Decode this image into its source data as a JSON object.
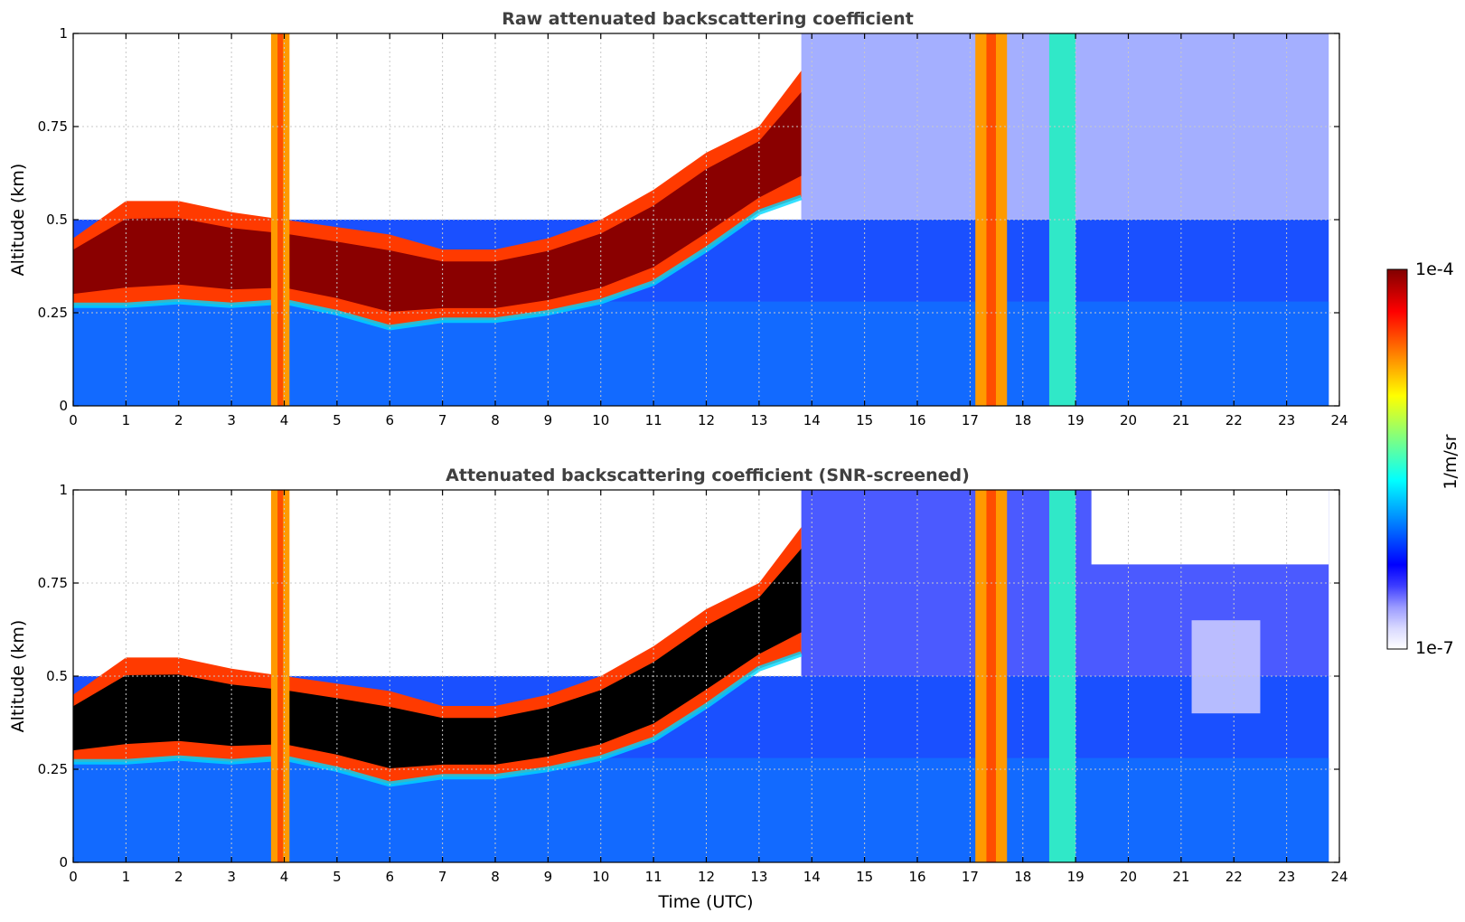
{
  "colorbar": {
    "max_label": "1e-4",
    "min_label": "1e-7",
    "unit_label": "1/m/sr",
    "colors": [
      "#ffffff",
      "#d8d8ff",
      "#9a9aff",
      "#3c3cff",
      "#0000ff",
      "#0040ff",
      "#0080ff",
      "#00c0ff",
      "#00ffff",
      "#40ffc0",
      "#80ff80",
      "#c0ff40",
      "#ffff00",
      "#ffc000",
      "#ff8000",
      "#ff4000",
      "#ff0000",
      "#c00000",
      "#800000"
    ]
  },
  "chart_data": [
    {
      "type": "heatmap",
      "title": "Raw attenuated backscattering coefficient",
      "xlabel": "",
      "ylabel": "Altitude (km)",
      "xlim": [
        0,
        24
      ],
      "ylim": [
        0,
        1
      ],
      "x_ticks": [
        "0",
        "1",
        "2",
        "3",
        "4",
        "5",
        "6",
        "7",
        "8",
        "9",
        "10",
        "11",
        "12",
        "13",
        "14",
        "15",
        "16",
        "17",
        "18",
        "19",
        "20",
        "21",
        "22",
        "23",
        "24"
      ],
      "y_ticks": [
        "0",
        "0.25",
        "0.5",
        "0.75",
        "1"
      ],
      "data_end_time": 23.8,
      "cloud_layer": {
        "bottom_km": [
          0.27,
          0.27,
          0.28,
          0.27,
          0.28,
          0.25,
          0.21,
          0.23,
          0.23,
          0.25,
          0.28,
          0.33,
          0.42,
          0.52,
          0.56
        ],
        "top_km": [
          0.45,
          0.55,
          0.55,
          0.52,
          0.5,
          0.48,
          0.46,
          0.42,
          0.42,
          0.45,
          0.5,
          0.58,
          0.68,
          0.75,
          0.9
        ],
        "time_utc": [
          0,
          1,
          2,
          3,
          4,
          5,
          6,
          7,
          8,
          9,
          10,
          11,
          12,
          13,
          13.8
        ]
      },
      "precipitation_bands_utc": [
        [
          3.75,
          4.1
        ],
        [
          17.1,
          17.7
        ],
        [
          18.5,
          19.0
        ]
      ],
      "grid": true
    },
    {
      "type": "heatmap",
      "title": "Attenuated backscattering coefficient (SNR-screened)",
      "xlabel": "Time (UTC)",
      "ylabel": "Altitude (km)",
      "xlim": [
        0,
        24
      ],
      "ylim": [
        0,
        1
      ],
      "x_ticks": [
        "0",
        "1",
        "2",
        "3",
        "4",
        "5",
        "6",
        "7",
        "8",
        "9",
        "10",
        "11",
        "12",
        "13",
        "14",
        "15",
        "16",
        "17",
        "18",
        "19",
        "20",
        "21",
        "22",
        "23",
        "24"
      ],
      "y_ticks": [
        "0",
        "0.25",
        "0.5",
        "0.75",
        "1"
      ],
      "data_end_time": 23.8,
      "cloud_layer": {
        "bottom_km": [
          0.27,
          0.27,
          0.28,
          0.27,
          0.28,
          0.25,
          0.21,
          0.23,
          0.23,
          0.25,
          0.28,
          0.33,
          0.42,
          0.52,
          0.56
        ],
        "top_km": [
          0.45,
          0.55,
          0.55,
          0.52,
          0.5,
          0.48,
          0.46,
          0.42,
          0.42,
          0.45,
          0.5,
          0.58,
          0.68,
          0.75,
          0.9
        ],
        "time_utc": [
          0,
          1,
          2,
          3,
          4,
          5,
          6,
          7,
          8,
          9,
          10,
          11,
          12,
          13,
          13.8
        ]
      },
      "precipitation_bands_utc": [
        [
          3.75,
          4.1
        ],
        [
          17.1,
          17.7
        ],
        [
          18.5,
          19.0
        ]
      ],
      "grid": true
    }
  ]
}
